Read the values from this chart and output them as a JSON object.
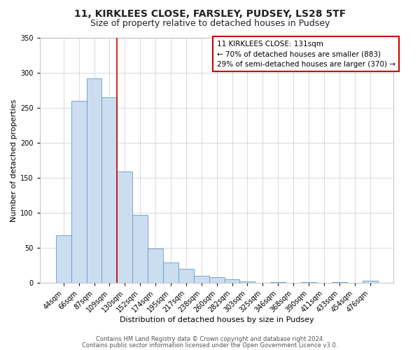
{
  "title": "11, KIRKLEES CLOSE, FARSLEY, PUDSEY, LS28 5TF",
  "subtitle": "Size of property relative to detached houses in Pudsey",
  "xlabel": "Distribution of detached houses by size in Pudsey",
  "ylabel": "Number of detached properties",
  "bar_labels": [
    "44sqm",
    "66sqm",
    "87sqm",
    "109sqm",
    "130sqm",
    "152sqm",
    "174sqm",
    "195sqm",
    "217sqm",
    "238sqm",
    "260sqm",
    "282sqm",
    "303sqm",
    "325sqm",
    "346sqm",
    "368sqm",
    "390sqm",
    "411sqm",
    "433sqm",
    "454sqm",
    "476sqm"
  ],
  "bar_values": [
    68,
    260,
    292,
    265,
    159,
    97,
    49,
    29,
    20,
    10,
    8,
    5,
    2,
    0,
    1,
    0,
    1,
    0,
    1,
    0,
    3
  ],
  "bar_color": "#ccddf0",
  "bar_edge_color": "#6699cc",
  "ylim": [
    0,
    350
  ],
  "yticks": [
    0,
    50,
    100,
    150,
    200,
    250,
    300,
    350
  ],
  "annotation_title": "11 KIRKLEES CLOSE: 131sqm",
  "annotation_line1": "← 70% of detached houses are smaller (883)",
  "annotation_line2": "29% of semi-detached houses are larger (370) →",
  "annotation_box_color": "#ffffff",
  "annotation_box_edge": "#cc0000",
  "property_line_color": "#cc0000",
  "footer1": "Contains HM Land Registry data © Crown copyright and database right 2024.",
  "footer2": "Contains public sector information licensed under the Open Government Licence v3.0.",
  "background_color": "#ffffff",
  "grid_color": "#cccccc",
  "title_fontsize": 10,
  "subtitle_fontsize": 9,
  "axis_label_fontsize": 8,
  "tick_fontsize": 7,
  "annotation_fontsize": 7.5,
  "footer_fontsize": 6
}
